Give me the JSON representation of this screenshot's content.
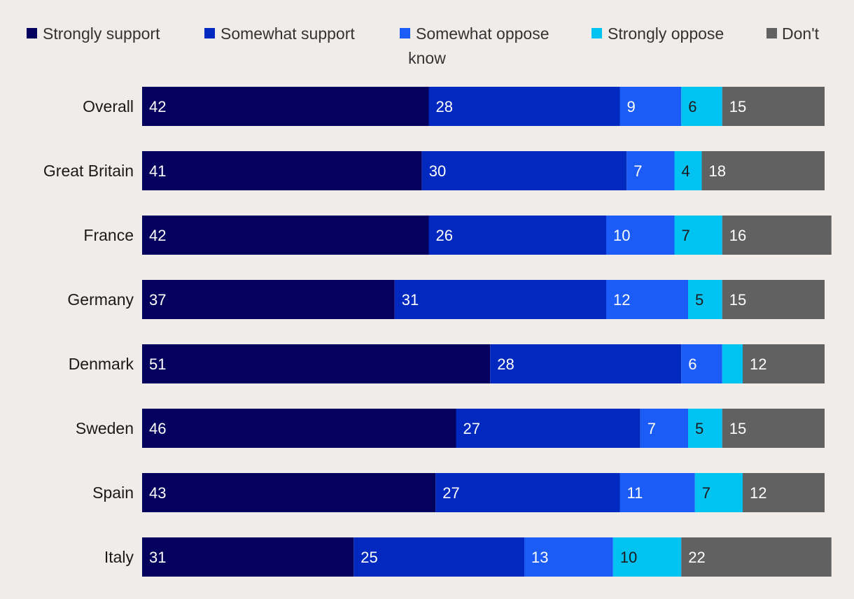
{
  "chart_data": {
    "type": "bar",
    "orientation": "horizontal",
    "stacked": true,
    "title": "",
    "xlabel": "",
    "ylabel": "",
    "xlim": [
      0,
      100
    ],
    "grid": false,
    "legend_position": "top",
    "categories": [
      "Overall",
      "Great Britain",
      "France",
      "Germany",
      "Denmark",
      "Sweden",
      "Spain",
      "Italy"
    ],
    "series": [
      {
        "name": "Strongly support",
        "color": "#04005e",
        "label_color": "#ffffff",
        "values": [
          42,
          41,
          42,
          37,
          51,
          46,
          43,
          31
        ]
      },
      {
        "name": "Somewhat support",
        "color": "#0229bf",
        "label_color": "#ffffff",
        "values": [
          28,
          30,
          26,
          31,
          28,
          27,
          27,
          25
        ]
      },
      {
        "name": "Somewhat oppose",
        "color": "#1a5cf5",
        "label_color": "#ffffff",
        "values": [
          9,
          7,
          10,
          12,
          6,
          7,
          11,
          13
        ]
      },
      {
        "name": "Strongly oppose",
        "color": "#00c3f2",
        "label_color": "#1a1a1a",
        "values": [
          6,
          4,
          7,
          5,
          3,
          5,
          7,
          10
        ]
      },
      {
        "name": "Don't know",
        "color": "#616161",
        "label_color": "#ffffff",
        "values": [
          15,
          18,
          16,
          15,
          12,
          15,
          12,
          22
        ]
      }
    ],
    "data_labels": [
      [
        "42",
        "28",
        "9",
        "6",
        "15"
      ],
      [
        "41",
        "30",
        "7",
        "4",
        "18"
      ],
      [
        "42",
        "26",
        "10",
        "7",
        "16"
      ],
      [
        "37",
        "31",
        "12",
        "5",
        "15"
      ],
      [
        "51",
        "28",
        "6",
        "",
        "12"
      ],
      [
        "46",
        "27",
        "7",
        "5",
        "15"
      ],
      [
        "43",
        "27",
        "11",
        "7",
        "12"
      ],
      [
        "31",
        "25",
        "13",
        "10",
        "22"
      ]
    ]
  }
}
